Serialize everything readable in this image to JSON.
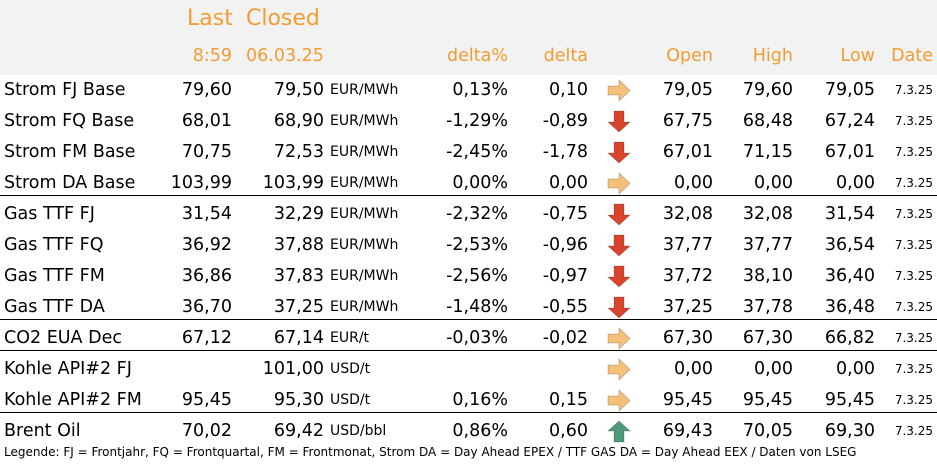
{
  "header": {
    "last_label": "Last",
    "closed_label": "Closed",
    "last_time": "8:59",
    "closed_date": "06.03.25",
    "delta_pct_label": "delta%",
    "delta_label": "delta",
    "open_label": "Open",
    "high_label": "High",
    "low_label": "Low",
    "date_label": "Date"
  },
  "colors": {
    "header_text": "#f39c31",
    "header_bg": "#f2f2f2",
    "arrow_right": "#f5c07a",
    "arrow_down": "#d9452c",
    "arrow_up": "#4f9a7a"
  },
  "rows": [
    {
      "name": "Strom FJ Base",
      "last": "79,60",
      "closed": "79,50",
      "unit": "EUR/MWh",
      "delta_pct": "0,13%",
      "delta": "0,10",
      "trend": "right",
      "open": "79,05",
      "high": "79,60",
      "low": "79,05",
      "date": "7.3.25"
    },
    {
      "name": "Strom FQ Base",
      "last": "68,01",
      "closed": "68,90",
      "unit": "EUR/MWh",
      "delta_pct": "-1,29%",
      "delta": "-0,89",
      "trend": "down",
      "open": "67,75",
      "high": "68,48",
      "low": "67,24",
      "date": "7.3.25"
    },
    {
      "name": "Strom FM Base",
      "last": "70,75",
      "closed": "72,53",
      "unit": "EUR/MWh",
      "delta_pct": "-2,45%",
      "delta": "-1,78",
      "trend": "down",
      "open": "67,01",
      "high": "71,15",
      "low": "67,01",
      "date": "7.3.25"
    },
    {
      "name": "Strom DA Base",
      "last": "103,99",
      "closed": "103,99",
      "unit": "EUR/MWh",
      "delta_pct": "0,00%",
      "delta": "0,00",
      "trend": "right",
      "open": "0,00",
      "high": "0,00",
      "low": "0,00",
      "date": "7.3.25"
    },
    {
      "name": "Gas TTF FJ",
      "last": "31,54",
      "closed": "32,29",
      "unit": "EUR/MWh",
      "delta_pct": "-2,32%",
      "delta": "-0,75",
      "trend": "down",
      "open": "32,08",
      "high": "32,08",
      "low": "31,54",
      "date": "7.3.25"
    },
    {
      "name": "Gas TTF FQ",
      "last": "36,92",
      "closed": "37,88",
      "unit": "EUR/MWh",
      "delta_pct": "-2,53%",
      "delta": "-0,96",
      "trend": "down",
      "open": "37,77",
      "high": "37,77",
      "low": "36,54",
      "date": "7.3.25"
    },
    {
      "name": "Gas TTF FM",
      "last": "36,86",
      "closed": "37,83",
      "unit": "EUR/MWh",
      "delta_pct": "-2,56%",
      "delta": "-0,97",
      "trend": "down",
      "open": "37,72",
      "high": "38,10",
      "low": "36,40",
      "date": "7.3.25"
    },
    {
      "name": "Gas TTF DA",
      "last": "36,70",
      "closed": "37,25",
      "unit": "EUR/MWh",
      "delta_pct": "-1,48%",
      "delta": "-0,55",
      "trend": "down",
      "open": "37,25",
      "high": "37,78",
      "low": "36,48",
      "date": "7.3.25"
    },
    {
      "name": "CO2 EUA Dec",
      "last": "67,12",
      "closed": "67,14",
      "unit": "EUR/t",
      "delta_pct": "-0,03%",
      "delta": "-0,02",
      "trend": "right",
      "open": "67,30",
      "high": "67,30",
      "low": "66,82",
      "date": "7.3.25"
    },
    {
      "name": "Kohle API#2 FJ",
      "last": "",
      "closed": "101,00",
      "unit": "USD/t",
      "delta_pct": "",
      "delta": "",
      "trend": "right",
      "open": "0,00",
      "high": "0,00",
      "low": "0,00",
      "date": "7.3.25"
    },
    {
      "name": "Kohle API#2 FM",
      "last": "95,45",
      "closed": "95,30",
      "unit": "USD/t",
      "delta_pct": "0,16%",
      "delta": "0,15",
      "trend": "right",
      "open": "95,45",
      "high": "95,45",
      "low": "95,45",
      "date": "7.3.25"
    },
    {
      "name": "Brent Oil",
      "last": "70,02",
      "closed": "69,42",
      "unit": "USD/bbl",
      "delta_pct": "0,86%",
      "delta": "0,60",
      "trend": "up",
      "open": "69,43",
      "high": "70,05",
      "low": "69,30",
      "date": "7.3.25"
    }
  ],
  "legend": "Legende: FJ = Frontjahr, FQ = Frontquartal, FM = Frontmonat, Strom DA = Day Ahead EPEX / TTF GAS DA = Day Ahead EEX / Daten von LSEG"
}
